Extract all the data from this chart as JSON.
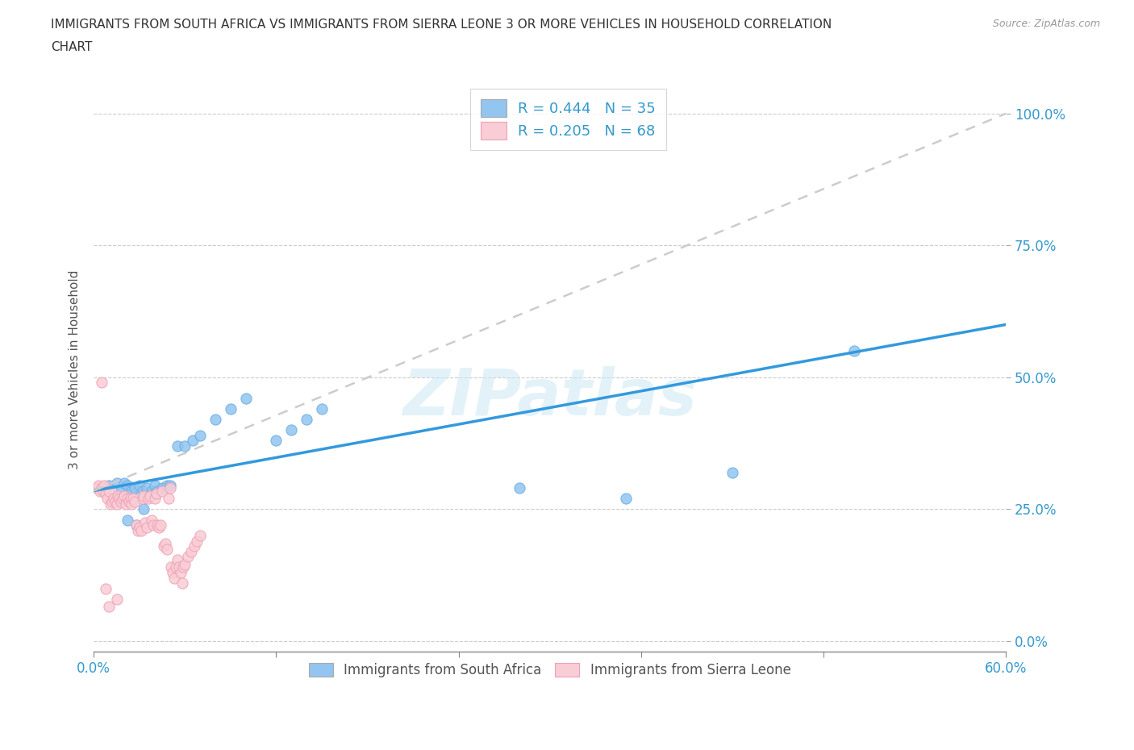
{
  "title_line1": "IMMIGRANTS FROM SOUTH AFRICA VS IMMIGRANTS FROM SIERRA LEONE 3 OR MORE VEHICLES IN HOUSEHOLD CORRELATION",
  "title_line2": "CHART",
  "source": "Source: ZipAtlas.com",
  "ylabel": "3 or more Vehicles in Household",
  "xlim": [
    0.0,
    0.6
  ],
  "ylim": [
    -0.02,
    1.05
  ],
  "ytick_positions": [
    0.0,
    0.25,
    0.5,
    0.75,
    1.0
  ],
  "ytick_labels": [
    "0.0%",
    "25.0%",
    "50.0%",
    "75.0%",
    "100.0%"
  ],
  "xtick_positions": [
    0.0,
    0.12,
    0.24,
    0.36,
    0.48,
    0.6
  ],
  "xtick_labels": [
    "0.0%",
    "",
    "",
    "",
    "",
    "60.0%"
  ],
  "blue_color": "#92c5f0",
  "blue_edge": "#6aaee0",
  "pink_color": "#f9cdd5",
  "pink_edge": "#f0a0b5",
  "line_blue": "#3399dd",
  "line_pink_dashed": "#cccccc",
  "legend_R1": "R = 0.444",
  "legend_N1": "N = 35",
  "legend_R2": "R = 0.205",
  "legend_N2": "N = 68",
  "legend_color_R": "#3399cc",
  "legend_color_N": "#333333",
  "label1": "Immigrants from South Africa",
  "label2": "Immigrants from Sierra Leone",
  "blue_scatter_x": [
    0.005,
    0.01,
    0.015,
    0.018,
    0.02,
    0.022,
    0.025,
    0.027,
    0.03,
    0.032,
    0.035,
    0.038,
    0.04,
    0.042,
    0.045,
    0.048,
    0.05,
    0.055,
    0.06,
    0.065,
    0.07,
    0.08,
    0.09,
    0.1,
    0.12,
    0.13,
    0.14,
    0.15,
    0.28,
    0.35,
    0.42,
    0.5,
    0.022,
    0.028,
    0.033
  ],
  "blue_scatter_y": [
    0.29,
    0.295,
    0.3,
    0.285,
    0.3,
    0.295,
    0.285,
    0.29,
    0.295,
    0.285,
    0.29,
    0.285,
    0.295,
    0.285,
    0.29,
    0.295,
    0.295,
    0.37,
    0.37,
    0.38,
    0.39,
    0.42,
    0.44,
    0.46,
    0.38,
    0.4,
    0.42,
    0.44,
    0.29,
    0.27,
    0.32,
    0.55,
    0.23,
    0.22,
    0.25
  ],
  "pink_scatter_x": [
    0.002,
    0.003,
    0.004,
    0.005,
    0.006,
    0.007,
    0.008,
    0.009,
    0.01,
    0.011,
    0.012,
    0.013,
    0.014,
    0.015,
    0.016,
    0.017,
    0.018,
    0.019,
    0.02,
    0.021,
    0.022,
    0.023,
    0.024,
    0.025,
    0.026,
    0.027,
    0.028,
    0.029,
    0.03,
    0.031,
    0.032,
    0.033,
    0.034,
    0.035,
    0.036,
    0.037,
    0.038,
    0.039,
    0.04,
    0.041,
    0.042,
    0.043,
    0.044,
    0.045,
    0.046,
    0.047,
    0.048,
    0.049,
    0.05,
    0.051,
    0.052,
    0.053,
    0.054,
    0.055,
    0.056,
    0.057,
    0.058,
    0.059,
    0.06,
    0.062,
    0.064,
    0.066,
    0.068,
    0.07,
    0.005,
    0.008,
    0.01,
    0.015
  ],
  "pink_scatter_y": [
    0.29,
    0.295,
    0.285,
    0.29,
    0.285,
    0.295,
    0.28,
    0.27,
    0.285,
    0.26,
    0.265,
    0.27,
    0.265,
    0.26,
    0.275,
    0.27,
    0.265,
    0.27,
    0.275,
    0.26,
    0.27,
    0.265,
    0.27,
    0.26,
    0.27,
    0.265,
    0.22,
    0.21,
    0.215,
    0.21,
    0.27,
    0.275,
    0.225,
    0.215,
    0.27,
    0.275,
    0.23,
    0.22,
    0.27,
    0.28,
    0.22,
    0.215,
    0.22,
    0.285,
    0.18,
    0.185,
    0.175,
    0.27,
    0.29,
    0.14,
    0.13,
    0.12,
    0.14,
    0.155,
    0.14,
    0.13,
    0.11,
    0.14,
    0.145,
    0.16,
    0.17,
    0.18,
    0.19,
    0.2,
    0.49,
    0.1,
    0.065,
    0.08
  ],
  "blue_line_x": [
    0.0,
    0.6
  ],
  "blue_line_y": [
    0.285,
    0.6
  ],
  "pink_line_x": [
    0.0,
    0.6
  ],
  "pink_line_y": [
    0.285,
    1.0
  ],
  "watermark": "ZIPatlas",
  "background_color": "#ffffff",
  "grid_color": "#cccccc",
  "title_fontsize": 11,
  "source_fontsize": 9
}
